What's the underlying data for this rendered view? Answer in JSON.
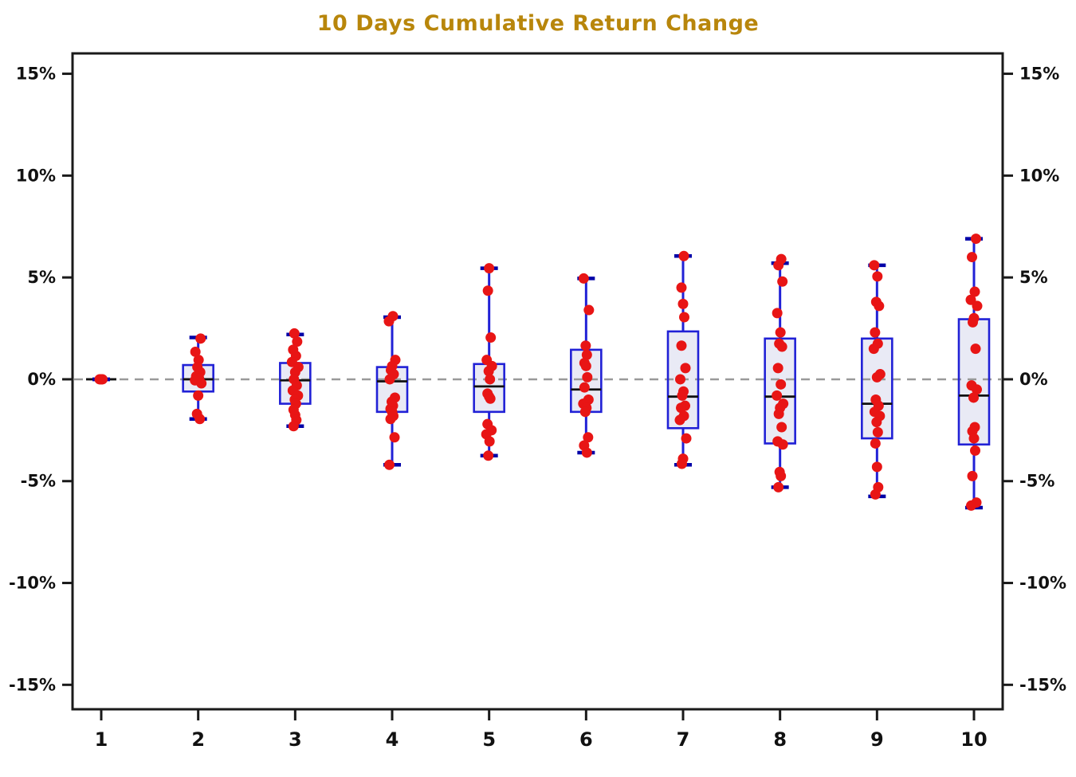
{
  "chart_data": {
    "type": "boxplot",
    "title": "10 Days Cumulative Return Change",
    "xlabel": "",
    "ylabel": "",
    "x_categories": [
      "1",
      "2",
      "3",
      "4",
      "5",
      "6",
      "7",
      "8",
      "9",
      "10"
    ],
    "y_ticks": [
      {
        "value": 15,
        "label": "15%"
      },
      {
        "value": 10,
        "label": "10%"
      },
      {
        "value": 5,
        "label": "5%"
      },
      {
        "value": 0,
        "label": "0%"
      },
      {
        "value": -5,
        "label": "-5%"
      },
      {
        "value": -10,
        "label": "-10%"
      },
      {
        "value": -15,
        "label": "-15%"
      }
    ],
    "ylim": [
      -16.2,
      16.0
    ],
    "y_unit": "percent",
    "grid": "off",
    "legend_position": "none",
    "zero_line": {
      "value": 0,
      "style": "dashed"
    },
    "boxes": [
      {
        "day": "1",
        "whisker_low": 0,
        "q1": 0,
        "median": 0,
        "q3": 0,
        "whisker_high": 0,
        "points": [
          0,
          0,
          0
        ]
      },
      {
        "day": "2",
        "whisker_low": -1.95,
        "q1": -0.6,
        "median": 0.0,
        "q3": 0.7,
        "whisker_high": 2.05,
        "points": [
          2.0,
          1.35,
          0.95,
          0.6,
          0.35,
          0.15,
          0.05,
          -0.05,
          -0.2,
          -0.8,
          -1.7,
          -1.95
        ]
      },
      {
        "day": "3",
        "whisker_low": -2.3,
        "q1": -1.2,
        "median": -0.05,
        "q3": 0.8,
        "whisker_high": 2.2,
        "points": [
          2.25,
          1.85,
          1.45,
          1.15,
          0.85,
          0.6,
          0.35,
          0.0,
          -0.3,
          -0.55,
          -0.8,
          -1.0,
          -1.2,
          -1.5,
          -1.75,
          -2.0,
          -2.3
        ]
      },
      {
        "day": "4",
        "whisker_low": -4.2,
        "q1": -1.6,
        "median": -0.1,
        "q3": 0.6,
        "whisker_high": 3.05,
        "points": [
          3.1,
          2.85,
          0.95,
          0.65,
          0.45,
          0.25,
          0.0,
          -0.9,
          -1.1,
          -1.3,
          -1.45,
          -1.6,
          -1.8,
          -1.95,
          -2.85,
          -4.2
        ]
      },
      {
        "day": "5",
        "whisker_low": -3.75,
        "q1": -1.6,
        "median": -0.35,
        "q3": 0.75,
        "whisker_high": 5.45,
        "points": [
          5.45,
          4.35,
          2.05,
          0.95,
          0.65,
          0.4,
          0.0,
          -0.7,
          -0.85,
          -0.95,
          -2.2,
          -2.5,
          -2.7,
          -3.05,
          -3.75
        ]
      },
      {
        "day": "6",
        "whisker_low": -3.6,
        "q1": -1.6,
        "median": -0.5,
        "q3": 1.45,
        "whisker_high": 4.95,
        "points": [
          4.95,
          3.4,
          1.65,
          1.2,
          0.8,
          0.65,
          0.1,
          -0.4,
          -1.0,
          -1.2,
          -1.4,
          -1.6,
          -2.85,
          -3.25,
          -3.6
        ]
      },
      {
        "day": "7",
        "whisker_low": -4.2,
        "q1": -2.4,
        "median": -0.85,
        "q3": 2.35,
        "whisker_high": 6.05,
        "points": [
          6.05,
          4.5,
          3.7,
          3.05,
          1.65,
          0.55,
          0.0,
          -0.6,
          -0.8,
          -1.3,
          -1.4,
          -1.8,
          -2.0,
          -2.9,
          -3.9,
          -4.15
        ]
      },
      {
        "day": "8",
        "whisker_low": -5.3,
        "q1": -3.15,
        "median": -0.85,
        "q3": 2.0,
        "whisker_high": 5.7,
        "points": [
          5.9,
          5.6,
          4.8,
          3.25,
          2.3,
          1.75,
          1.6,
          0.55,
          -0.25,
          -0.8,
          -1.2,
          -1.4,
          -1.7,
          -2.35,
          -3.05,
          -3.2,
          -4.55,
          -4.75,
          -5.3
        ]
      },
      {
        "day": "9",
        "whisker_low": -5.75,
        "q1": -2.9,
        "median": -1.2,
        "q3": 2.0,
        "whisker_high": 5.6,
        "points": [
          5.6,
          5.05,
          3.8,
          3.6,
          2.3,
          1.75,
          1.5,
          0.25,
          0.1,
          -1.0,
          -1.3,
          -1.6,
          -1.8,
          -2.1,
          -2.6,
          -3.15,
          -4.3,
          -5.3,
          -5.65
        ]
      },
      {
        "day": "10",
        "whisker_low": -6.3,
        "q1": -3.2,
        "median": -0.8,
        "q3": 2.95,
        "whisker_high": 6.9,
        "points": [
          6.9,
          6.0,
          4.3,
          3.9,
          3.6,
          3.0,
          2.8,
          1.5,
          -0.3,
          -0.5,
          -0.9,
          -2.35,
          -2.55,
          -2.9,
          -3.5,
          -4.75,
          -6.05,
          -6.2
        ]
      }
    ],
    "colors": {
      "title": "#B8860B",
      "box_border": "#2121D6",
      "box_fill": "#E9EAF5",
      "whisker": "#2121D6",
      "whisker_cap": "#0000A8",
      "median": "#111111",
      "dot": "#E81515",
      "zero_line": "#999999",
      "axis": "#1A1A1A",
      "tick_label": "#111111"
    }
  }
}
